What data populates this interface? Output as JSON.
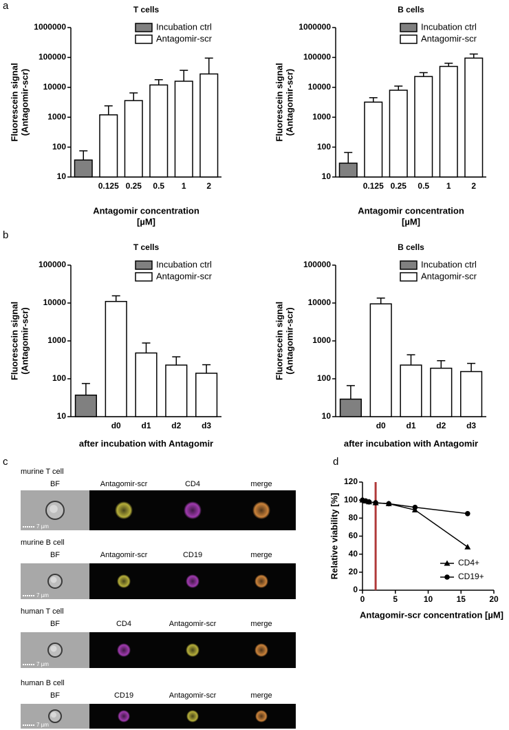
{
  "panel_labels": [
    "a",
    "b",
    "c",
    "d"
  ],
  "chart_data": [
    {
      "type": "bar",
      "title": "T cells",
      "ylabel": [
        "Fluorescein signal",
        "(Antagomir-scr)"
      ],
      "xlabel": [
        "Antagomir concentration",
        "[µM]"
      ],
      "categories": [
        null,
        "0.125",
        "0.25",
        "0.5",
        "1",
        "2"
      ],
      "log_y": true,
      "ylim": [
        10,
        1000000
      ],
      "yticks": [
        10,
        100,
        1000,
        10000,
        100000,
        1000000
      ],
      "legend": "upper right",
      "series": [
        {
          "name": "Incubation ctrl",
          "color": "#808080",
          "values": [
            37,
            null,
            null,
            null,
            null,
            null
          ],
          "errors": [
            38,
            null,
            null,
            null,
            null,
            null
          ]
        },
        {
          "name": "Antagomir-scr",
          "color": "#ffffff",
          "values": [
            null,
            1200,
            3600,
            12000,
            16000,
            28000
          ],
          "errors": [
            null,
            1200,
            2900,
            6000,
            21000,
            67000
          ]
        }
      ]
    },
    {
      "type": "bar",
      "title": "B cells",
      "ylabel": [
        "Fluorescein signal",
        "(Antagomir-scr)"
      ],
      "xlabel": [
        "Antagomir concentration",
        "[µM]"
      ],
      "categories": [
        null,
        "0.125",
        "0.25",
        "0.5",
        "1",
        "2"
      ],
      "log_y": true,
      "ylim": [
        10,
        1000000
      ],
      "yticks": [
        10,
        100,
        1000,
        10000,
        100000,
        1000000
      ],
      "legend": "upper right",
      "series": [
        {
          "name": "Incubation ctrl",
          "color": "#808080",
          "values": [
            29,
            null,
            null,
            null,
            null,
            null
          ],
          "errors": [
            37,
            null,
            null,
            null,
            null,
            null
          ]
        },
        {
          "name": "Antagomir-scr",
          "color": "#ffffff",
          "values": [
            null,
            3200,
            8000,
            23000,
            50000,
            95000
          ],
          "errors": [
            null,
            1300,
            3000,
            8000,
            14000,
            35000
          ]
        }
      ]
    },
    {
      "type": "bar",
      "title": "T cells",
      "ylabel": [
        "Fluorescein signal",
        "(Antagomir-scr)"
      ],
      "xlabel": [
        "after incubation with Antagomir"
      ],
      "categories": [
        null,
        "d0",
        "d1",
        "d2",
        "d3"
      ],
      "log_y": true,
      "ylim": [
        10,
        100000
      ],
      "yticks": [
        10,
        100,
        1000,
        10000,
        100000
      ],
      "legend": "upper right",
      "series": [
        {
          "name": "Incubation ctrl",
          "color": "#808080",
          "values": [
            37,
            null,
            null,
            null,
            null
          ],
          "errors": [
            38,
            null,
            null,
            null,
            null
          ]
        },
        {
          "name": "Antagomir-scr",
          "color": "#ffffff",
          "values": [
            null,
            11000,
            480,
            230,
            140
          ],
          "errors": [
            null,
            4500,
            400,
            150,
            95
          ]
        }
      ]
    },
    {
      "type": "bar",
      "title": "B cells",
      "ylabel": [
        "Fluorescein signal",
        "(Antagomir-scr)"
      ],
      "xlabel": [
        "after incubation with Antagomir"
      ],
      "categories": [
        null,
        "d0",
        "d1",
        "d2",
        "d3"
      ],
      "log_y": true,
      "ylim": [
        10,
        100000
      ],
      "yticks": [
        10,
        100,
        1000,
        10000,
        100000
      ],
      "legend": "upper right",
      "series": [
        {
          "name": "Incubation ctrl",
          "color": "#808080",
          "values": [
            29,
            null,
            null,
            null,
            null
          ],
          "errors": [
            37,
            null,
            null,
            null,
            null
          ]
        },
        {
          "name": "Antagomir-scr",
          "color": "#ffffff",
          "values": [
            null,
            9500,
            230,
            190,
            155
          ],
          "errors": [
            null,
            4000,
            200,
            110,
            100
          ]
        }
      ]
    },
    {
      "type": "line",
      "ylabel": [
        "Relative viability [%]"
      ],
      "xlabel": [
        "Antagomir-scr concentration [µM]"
      ],
      "xlim": [
        0,
        20
      ],
      "xticks": [
        0,
        5,
        10,
        15,
        20
      ],
      "ylim": [
        0,
        120
      ],
      "yticks": [
        0,
        20,
        40,
        60,
        80,
        100,
        120
      ],
      "legend": "lower right",
      "vline": {
        "x": 2,
        "color": "#b03a3a"
      },
      "series": [
        {
          "name": "CD4+",
          "marker": "triangle",
          "color": "#000000",
          "x": [
            0,
            0.5,
            1,
            2,
            4,
            8,
            16
          ],
          "values": [
            100,
            99,
            98,
            97,
            96,
            89,
            48
          ]
        },
        {
          "name": "CD19+",
          "marker": "circle",
          "color": "#000000",
          "x": [
            0,
            0.5,
            1,
            2,
            4,
            8,
            16
          ],
          "values": [
            100,
            99,
            98,
            97,
            96,
            92,
            85
          ]
        }
      ]
    }
  ],
  "microscopy": {
    "rows": [
      {
        "title": "murine T cell",
        "columns": [
          "BF",
          "Antagomir-scr",
          "CD4",
          "merge"
        ],
        "scale": "7 µm"
      },
      {
        "title": "murine B cell",
        "columns": [
          "BF",
          "Antagomir-scr",
          "CD19",
          "merge"
        ],
        "scale": "7 µm"
      },
      {
        "title": "human T cell",
        "columns": [
          "BF",
          "CD4",
          "Antagomir-scr",
          "merge"
        ],
        "scale": "7 µm"
      },
      {
        "title": "human B cell",
        "columns": [
          "BF",
          "CD19",
          "Antagomir-scr",
          "merge"
        ],
        "scale": "7 µm"
      }
    ]
  }
}
